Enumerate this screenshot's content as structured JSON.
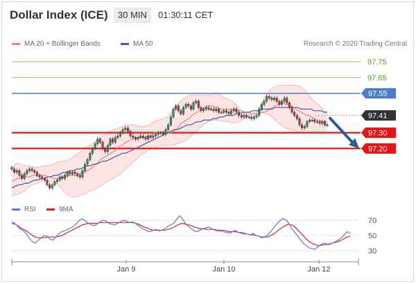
{
  "header": {
    "title": "Dollar Index (ICE)",
    "timeframe": "30 MIN",
    "time": "01:30:11 CET"
  },
  "legend": {
    "bollinger": "MA 20 + Bollinger Bands",
    "ma50": "MA 50",
    "rsi": "RSI",
    "ma9": "9MA"
  },
  "credit": "Research © 2020 Trading Central",
  "colors": {
    "bollinger": "#f08080",
    "ma50": "#3a5f9a",
    "rsi": "#5b7be0",
    "ma9": "#e02020",
    "resistance_green": "#8ec45a",
    "pivot_blue": "#4a7fc7",
    "support_red": "#e41515",
    "current_dark": "#333333",
    "arrow": "#2e5a9a",
    "band_fill": "#fde0e0"
  },
  "chart_data": [
    {
      "type": "line",
      "name": "price",
      "ylim": [
        96.89,
        97.9
      ],
      "x_ticks": [
        "Jan 9",
        "Jan 10",
        "Jan 12"
      ],
      "levels": [
        {
          "value": 97.75,
          "label": "97.75",
          "style": "green-text"
        },
        {
          "value": 97.65,
          "label": "97.65",
          "style": "green-text"
        },
        {
          "value": 97.55,
          "label": "97.55",
          "style": "blue-tag"
        },
        {
          "value": 97.41,
          "label": "97.41",
          "style": "dark-tag"
        },
        {
          "value": 97.3,
          "label": "97.30",
          "style": "red-tag"
        },
        {
          "value": 97.2,
          "label": "97.20",
          "style": "red-tag"
        }
      ],
      "price_close": [
        97.07,
        97.05,
        97.06,
        97.03,
        97.01,
        97.04,
        97.06,
        97.07,
        97.06,
        97.05,
        97.03,
        97.02,
        97.01,
        97.0,
        96.97,
        96.95,
        96.97,
        96.99,
        97.0,
        97.02,
        97.01,
        97.03,
        97.05,
        97.04,
        97.05,
        97.04,
        97.03,
        97.02,
        97.06,
        97.1,
        97.13,
        97.17,
        97.2,
        97.23,
        97.26,
        97.24,
        97.2,
        97.18,
        97.22,
        97.26,
        97.24,
        97.27,
        97.28,
        97.3,
        97.32,
        97.33,
        97.31,
        97.28,
        97.27,
        97.26,
        97.27,
        97.28,
        97.27,
        97.26,
        97.28,
        97.27,
        97.28,
        97.29,
        97.3,
        97.3,
        97.29,
        97.32,
        97.35,
        97.4,
        97.45,
        97.47,
        97.44,
        97.42,
        97.46,
        97.48,
        97.47,
        97.45,
        97.49,
        97.5,
        97.46,
        97.44,
        97.45,
        97.46,
        97.45,
        97.45,
        97.44,
        97.45,
        97.43,
        97.43,
        97.44,
        97.43,
        97.42,
        97.44,
        97.45,
        97.43,
        97.41,
        97.4,
        97.41,
        97.4,
        97.4,
        97.39,
        97.4,
        97.41,
        97.45,
        97.48,
        97.5,
        97.53,
        97.52,
        97.51,
        97.52,
        97.5,
        97.48,
        97.5,
        97.52,
        97.49,
        97.46,
        97.43,
        97.41,
        97.39,
        97.35,
        97.33,
        97.34,
        97.37,
        97.38,
        97.38,
        97.37,
        97.37,
        97.36,
        97.37,
        97.35,
        97.35
      ],
      "ma20": [
        96.99,
        97.0,
        97.01,
        97.01,
        97.02,
        97.02,
        97.02,
        97.02,
        97.03,
        97.03,
        97.03,
        97.03,
        97.03,
        97.03,
        97.02,
        97.02,
        97.01,
        97.01,
        97.01,
        97.02,
        97.02,
        97.02,
        97.03,
        97.03,
        97.03,
        97.03,
        97.04,
        97.05,
        97.05,
        97.06,
        97.07,
        97.08,
        97.1,
        97.11,
        97.13,
        97.14,
        97.15,
        97.16,
        97.17,
        97.18,
        97.19,
        97.21,
        97.22,
        97.23,
        97.24,
        97.25,
        97.26,
        97.26,
        97.27,
        97.27,
        97.27,
        97.27,
        97.28,
        97.28,
        97.29,
        97.3,
        97.3,
        97.3,
        97.3,
        97.3,
        97.3,
        97.3,
        97.31,
        97.32,
        97.34,
        97.36,
        97.37,
        97.38,
        97.39,
        97.41,
        97.42,
        97.43,
        97.44,
        97.45,
        97.46,
        97.47,
        97.47,
        97.47,
        97.46,
        97.46,
        97.45,
        97.45,
        97.45,
        97.45,
        97.45,
        97.45,
        97.45,
        97.44,
        97.44,
        97.43,
        97.43,
        97.43,
        97.42,
        97.42,
        97.42,
        97.42,
        97.43,
        97.43,
        97.44,
        97.45,
        97.46,
        97.47,
        97.48,
        97.48,
        97.49,
        97.48,
        97.48,
        97.47,
        97.46,
        97.45,
        97.44,
        97.43,
        97.42,
        97.41,
        97.41,
        97.4,
        97.39,
        97.38,
        97.38,
        97.37,
        97.37,
        97.37
      ],
      "ma50": [
        96.95,
        96.96,
        96.97,
        96.97,
        96.98,
        96.98,
        96.99,
        97.0,
        97.0,
        97.01,
        97.01,
        97.02,
        97.02,
        97.03,
        97.03,
        97.04,
        97.05,
        97.05,
        97.06,
        97.06,
        97.07,
        97.07,
        97.08,
        97.09,
        97.09,
        97.1,
        97.1,
        97.11,
        97.12,
        97.12,
        97.13,
        97.14,
        97.15,
        97.16,
        97.17,
        97.17,
        97.18,
        97.19,
        97.2,
        97.21,
        97.22,
        97.23,
        97.24,
        97.25,
        97.26,
        97.27,
        97.28,
        97.29,
        97.3,
        97.31,
        97.32,
        97.32,
        97.33,
        97.34,
        97.35,
        97.35,
        97.36,
        97.37,
        97.37,
        97.38,
        97.38,
        97.38,
        97.39,
        97.39,
        97.4,
        97.4,
        97.41,
        97.41,
        97.41,
        97.42,
        97.42,
        97.43,
        97.43,
        97.43,
        97.44,
        97.44,
        97.44,
        97.45,
        97.45,
        97.45,
        97.45,
        97.46,
        97.46,
        97.46,
        97.46,
        97.46,
        97.46,
        97.46,
        97.46,
        97.45,
        97.45,
        97.45,
        97.45,
        97.44,
        97.44,
        97.44,
        97.43,
        97.43
      ],
      "bb_upper": [
        97.07,
        97.11,
        97.1,
        97.09,
        97.09,
        97.08,
        97.08,
        97.09,
        97.09,
        97.1,
        97.11,
        97.12,
        97.12,
        97.13,
        97.15,
        97.17,
        97.19,
        97.21,
        97.23,
        97.25,
        97.27,
        97.29,
        97.31,
        97.32,
        97.33,
        97.34,
        97.35,
        97.35,
        97.35,
        97.34,
        97.34,
        97.35,
        97.37,
        97.38,
        97.39,
        97.4,
        97.43,
        97.47,
        97.5,
        97.52,
        97.54,
        97.54,
        97.54,
        97.54,
        97.54,
        97.54,
        97.55,
        97.54,
        97.52,
        97.51,
        97.49,
        97.46,
        97.43,
        97.42,
        97.42,
        97.42,
        97.47,
        97.53,
        97.57,
        97.59,
        97.6,
        97.6,
        97.6,
        97.6,
        97.6,
        97.59,
        97.57,
        97.53,
        97.5,
        97.48,
        97.45,
        97.42
      ],
      "bb_lower": [
        96.9,
        96.91,
        96.92,
        96.95,
        96.97,
        96.98,
        97.0,
        96.99,
        96.99,
        96.97,
        96.93,
        96.9,
        96.89,
        96.9,
        96.91,
        96.93,
        96.94,
        96.96,
        96.98,
        97.0,
        97.02,
        97.04,
        97.07,
        97.1,
        97.13,
        97.16,
        97.18,
        97.2,
        97.21,
        97.22,
        97.22,
        97.22,
        97.23,
        97.24,
        97.26,
        97.29,
        97.32,
        97.35,
        97.37,
        97.38,
        97.38,
        97.37,
        97.37,
        97.36,
        97.37,
        97.39,
        97.41,
        97.43,
        97.43,
        97.42,
        97.41,
        97.38,
        97.35,
        97.33,
        97.32,
        97.31,
        97.3,
        97.3,
        97.3,
        97.3,
        97.3,
        97.3
      ],
      "projection": {
        "from": 97.41,
        "to": 97.2
      }
    },
    {
      "type": "line",
      "name": "RSI",
      "ylim": [
        20,
        80
      ],
      "y_ticks": [
        70,
        50,
        30
      ],
      "rsi": [
        68,
        66,
        62,
        58,
        56,
        52,
        46,
        42,
        40,
        44,
        47,
        50,
        49,
        45,
        44,
        48,
        52,
        55,
        56,
        58,
        60,
        62,
        66,
        70,
        72,
        69,
        66,
        64,
        63,
        65,
        68,
        70,
        69,
        66,
        65,
        64,
        66,
        68,
        70,
        69,
        67,
        68,
        66,
        63,
        60,
        58,
        56,
        55,
        57,
        58,
        56,
        57,
        59,
        62,
        64,
        66,
        71,
        76,
        72,
        66,
        62,
        59,
        56,
        55,
        57,
        59,
        60,
        61,
        59,
        57,
        56,
        56,
        55,
        54,
        53,
        55,
        57,
        54,
        53,
        52,
        52,
        51,
        53,
        50,
        49,
        47,
        48,
        51,
        55,
        60,
        65,
        69,
        72,
        71,
        67,
        60,
        55,
        50,
        45,
        40,
        37,
        34,
        33,
        32,
        35,
        38,
        40,
        39,
        38,
        40,
        42,
        44,
        47,
        51,
        55,
        53
      ],
      "ma9": [
        66,
        65,
        63,
        60,
        58,
        56,
        53,
        50,
        48,
        47,
        47,
        47,
        48,
        48,
        48,
        48,
        49,
        50,
        52,
        54,
        56,
        58,
        60,
        62,
        64,
        65,
        66,
        66,
        66,
        66,
        67,
        67,
        67,
        67,
        67,
        67,
        67,
        67,
        67,
        67,
        67,
        67,
        66,
        65,
        63,
        61,
        60,
        58,
        57,
        57,
        57,
        57,
        57,
        58,
        59,
        61,
        63,
        65,
        66,
        65,
        64,
        63,
        61,
        60,
        59,
        59,
        58,
        58,
        58,
        58,
        57,
        57,
        57,
        56,
        55,
        55,
        55,
        54,
        54,
        53,
        52,
        51,
        51,
        50,
        49,
        48,
        48,
        48,
        50,
        52,
        55,
        58,
        61,
        63,
        65,
        64,
        62,
        58,
        54,
        50,
        46,
        42,
        40,
        38,
        37,
        37,
        38,
        38,
        39,
        40,
        41,
        42,
        44,
        46,
        48,
        49
      ]
    }
  ]
}
